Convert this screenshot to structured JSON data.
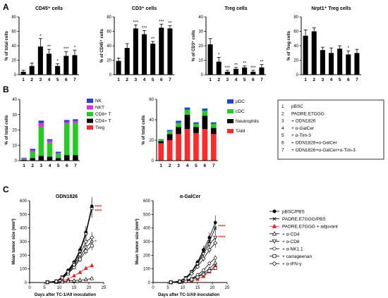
{
  "panels": [
    {
      "letter": "A"
    },
    {
      "letter": "B"
    },
    {
      "letter": "C"
    }
  ],
  "chart_data": [
    {
      "type": "bar",
      "panel": "A",
      "title": "CD45⁺ cells",
      "categories": [
        "1",
        "2",
        "3",
        "4",
        "5",
        "6",
        "7"
      ],
      "values": [
        4,
        12,
        39,
        29,
        12,
        26,
        27
      ],
      "errors": [
        2,
        4,
        11,
        6,
        3,
        6,
        7
      ],
      "ylabel": "% of total cells",
      "ylim": [
        0,
        80
      ],
      "yticks": [
        0,
        20,
        40,
        60,
        80
      ],
      "significance": [
        "",
        "",
        "*",
        "**",
        "*",
        "***",
        "*"
      ]
    },
    {
      "type": "bar",
      "panel": "A",
      "title": "CD3⁺ cells",
      "categories": [
        "1",
        "2",
        "3",
        "4",
        "5",
        "6",
        "7"
      ],
      "values": [
        19,
        37,
        64,
        56,
        43,
        65,
        64
      ],
      "errors": [
        4,
        6,
        5,
        5,
        3,
        5,
        4
      ],
      "ylabel": "% of CD45⁺ cells",
      "ylim": [
        0,
        80
      ],
      "yticks": [
        0,
        20,
        40,
        60,
        80
      ],
      "significance": [
        "",
        "",
        "***",
        "***",
        "**",
        "***",
        "**"
      ]
    },
    {
      "type": "bar",
      "panel": "A",
      "title": "Treg cells",
      "categories": [
        "1",
        "2",
        "3",
        "4",
        "5",
        "6",
        "7"
      ],
      "values": [
        21,
        9,
        2,
        4,
        5,
        2,
        5
      ],
      "errors": [
        4,
        3,
        1,
        1,
        1,
        1,
        2
      ],
      "ylabel": "% of CD3⁺ cells",
      "ylim": [
        0,
        40
      ],
      "yticks": [
        0,
        10,
        20,
        30,
        40
      ],
      "significance": [
        "",
        "*",
        "***",
        "**",
        "**",
        "***",
        "**"
      ]
    },
    {
      "type": "bar",
      "panel": "A",
      "title": "Nrpt1⁺ Treg cells",
      "categories": [
        "1",
        "2",
        "3",
        "4",
        "5",
        "6",
        "7"
      ],
      "values": [
        54,
        60,
        34,
        30,
        36,
        28,
        30
      ],
      "errors": [
        8,
        5,
        4,
        7,
        4,
        5,
        5
      ],
      "ylabel": "% of Treg cells",
      "ylim": [
        0,
        80
      ],
      "yticks": [
        0,
        20,
        40,
        60,
        80
      ],
      "significance": [
        "",
        "",
        "",
        "",
        "",
        "*",
        ""
      ]
    },
    {
      "type": "bar",
      "stacked": true,
      "panel": "B",
      "categories": [
        "1",
        "2",
        "3",
        "4",
        "5",
        "6",
        "7"
      ],
      "ylabel": "% of total cells",
      "ylim": [
        0,
        40
      ],
      "yticks": [
        0,
        10,
        20,
        30,
        40
      ],
      "series": [
        {
          "name": "Treg",
          "color": "#ff2a2a",
          "values": [
            0.1,
            0.2,
            0.1,
            0.1,
            0.1,
            0.1,
            0.1
          ]
        },
        {
          "name": "CD4+ T",
          "color": "#000000",
          "values": [
            0.5,
            1.5,
            3,
            2.5,
            1.5,
            3.5,
            3.5
          ]
        },
        {
          "name": "CD8+ T",
          "color": "#22cc22",
          "values": [
            0.7,
            3.8,
            19,
            9,
            2.7,
            20.5,
            21
          ]
        },
        {
          "name": "NKT",
          "color": "#dd33dd",
          "values": [
            0.3,
            1.2,
            2.5,
            1.4,
            0.7,
            1.2,
            1.4
          ]
        },
        {
          "name": "NK",
          "color": "#1f3fe0",
          "values": [
            0.3,
            1,
            1.5,
            1,
            0.8,
            1.2,
            1
          ]
        }
      ],
      "legend_order": [
        "NK",
        "NKT",
        "CD8+ T",
        "CD4+ T",
        "Treg"
      ]
    },
    {
      "type": "bar",
      "stacked": true,
      "panel": "B",
      "categories": [
        "1",
        "2",
        "3",
        "4",
        "5",
        "6",
        "7"
      ],
      "ylabel": "% of total cells",
      "ylim": [
        0,
        60
      ],
      "yticks": [
        0,
        20,
        40,
        60
      ],
      "series": [
        {
          "name": "TAM",
          "color": "#ff2a2a",
          "values": [
            17,
            20,
            26,
            31,
            27,
            31,
            26
          ]
        },
        {
          "name": "Neutrophils",
          "color": "#000000",
          "values": [
            2,
            6,
            7,
            14,
            6,
            13,
            6
          ]
        },
        {
          "name": "cDC",
          "color": "#22cc22",
          "values": [
            1.5,
            3,
            4,
            5,
            3,
            5,
            4
          ]
        },
        {
          "name": "pDC",
          "color": "#1f3fe0",
          "values": [
            0.5,
            1,
            2,
            2,
            1.5,
            2,
            1.5
          ]
        }
      ],
      "legend_order": [
        "pDC",
        "cDC",
        "Neutrophils",
        "TAM"
      ]
    },
    {
      "type": "line",
      "panel": "C",
      "title": "ODN1826",
      "xlabel": "Days after TC-1/A9 inoculation",
      "ylabel": "Mean tumor size (mm³)",
      "xlim": [
        0,
        25
      ],
      "ylim": [
        0,
        600
      ],
      "xticks": [
        0,
        5,
        10,
        15,
        20,
        25
      ],
      "yticks": [
        0,
        100,
        200,
        300,
        400,
        500,
        600
      ],
      "x": [
        6,
        9,
        11,
        13,
        15,
        17,
        19,
        21
      ],
      "series": [
        {
          "name": "pBSC/PBS",
          "marker": "circle-filled",
          "color": "#000000",
          "values": [
            2,
            10,
            40,
            90,
            150,
            240,
            370,
            560
          ]
        },
        {
          "name": "PADRE.E7GGG/PBS",
          "marker": "x",
          "color": "#000000",
          "values": [
            2,
            10,
            38,
            85,
            145,
            230,
            360,
            545
          ]
        },
        {
          "name": "PADRE.E7GGG + adjuvant",
          "marker": "triangle-filled",
          "color": "#e02020",
          "values": [
            1,
            4,
            10,
            25,
            50,
            75,
            105,
            125
          ]
        },
        {
          "name": "+ α-CD4",
          "marker": "triangle-open",
          "color": "#000000",
          "values": [
            1,
            3,
            6,
            10,
            14,
            18,
            22,
            30
          ]
        },
        {
          "name": "+ α-CD8",
          "marker": "triangle-down-open",
          "color": "#000000",
          "values": [
            2,
            9,
            38,
            82,
            140,
            225,
            355,
            540
          ]
        },
        {
          "name": "+ α-NK1.1",
          "marker": "circle-open",
          "color": "#000000",
          "values": [
            2,
            8,
            30,
            70,
            120,
            185,
            260,
            300
          ]
        },
        {
          "name": "+ carrageenan",
          "marker": "square-open",
          "color": "#000000",
          "values": [
            2,
            8,
            28,
            65,
            110,
            170,
            230,
            270
          ]
        },
        {
          "name": "+ α-IFN-γ",
          "marker": "diamond-open",
          "color": "#000000",
          "values": [
            2,
            9,
            35,
            78,
            130,
            205,
            300,
            330
          ]
        }
      ],
      "significance_labels": [
        {
          "text": "****",
          "color": "#e02020",
          "y": 555
        },
        {
          "text": "****",
          "color": "#e02020",
          "y": 525
        },
        {
          "text": "*",
          "color": "#e02020",
          "y": 300
        }
      ]
    },
    {
      "type": "line",
      "panel": "C",
      "title": "α-GalCer",
      "xlabel": "Days after TC-1/A9 inoculation",
      "ylabel": "Mean tumor size (mm³)",
      "xlim": [
        0,
        25
      ],
      "ylim": [
        0,
        600
      ],
      "xticks": [
        0,
        5,
        10,
        15,
        20,
        25
      ],
      "yticks": [
        0,
        100,
        200,
        300,
        400,
        500,
        600
      ],
      "x": [
        6,
        9,
        11,
        13,
        15,
        17,
        19,
        21
      ],
      "series": [
        {
          "name": "pBSC/PBS",
          "marker": "circle-filled",
          "color": "#000000",
          "values": [
            2,
            10,
            35,
            80,
            150,
            240,
            330,
            440
          ]
        },
        {
          "name": "PADRE.E7GGG/PBS",
          "marker": "x",
          "color": "#000000",
          "values": [
            2,
            9,
            33,
            75,
            140,
            225,
            300,
            400
          ]
        },
        {
          "name": "PADRE.E7GGG + adjuvant",
          "marker": "triangle-filled",
          "color": "#e02020",
          "values": [
            1,
            3,
            8,
            15,
            25,
            45,
            80,
            125
          ]
        },
        {
          "name": "+ α-CD4",
          "marker": "triangle-open",
          "color": "#000000",
          "values": [
            1,
            4,
            12,
            25,
            45,
            70,
            100,
            145
          ]
        },
        {
          "name": "+ α-CD8",
          "marker": "triangle-down-open",
          "color": "#000000",
          "values": [
            2,
            9,
            33,
            75,
            135,
            210,
            280,
            330
          ]
        },
        {
          "name": "+ α-NK1.1",
          "marker": "circle-open",
          "color": "#000000",
          "values": [
            1,
            5,
            15,
            30,
            55,
            90,
            140,
            180
          ]
        },
        {
          "name": "+ carrageenan",
          "marker": "square-open",
          "color": "#000000",
          "values": [
            1,
            4,
            10,
            22,
            40,
            60,
            85,
            105
          ]
        },
        {
          "name": "+ α-IFN-γ",
          "marker": "diamond-open",
          "color": "#000000",
          "values": [
            2,
            8,
            28,
            65,
            115,
            175,
            240,
            290
          ]
        }
      ],
      "significance_labels": [
        {
          "text": "****",
          "color": "#e02020",
          "y": 410
        },
        {
          "text": "****",
          "color": "#e02020",
          "y": 330
        }
      ]
    }
  ],
  "group_legend": [
    {
      "num": "1",
      "label": "pBSC"
    },
    {
      "num": "2",
      "label": "PADRE.E7GGG"
    },
    {
      "num": "3",
      "label": "+ ODN1826"
    },
    {
      "num": "4",
      "label": "+ α-GalCer"
    },
    {
      "num": "5",
      "label": "+ α-Tim-3"
    },
    {
      "num": "6",
      "label": "+ ODN1826+α-GalCer"
    },
    {
      "num": "7",
      "label": "+ ODN1826+α-GalCer+α-Tim-3"
    }
  ],
  "treatment_legend": [
    {
      "marker": "circle-filled",
      "color": "#000000",
      "label": "pBSC/PBS"
    },
    {
      "marker": "x",
      "color": "#000000",
      "label": "PADRE.E7GGG/PBS"
    },
    {
      "marker": "triangle-filled",
      "color": "#e02020",
      "label": "PADRE.E7GGG + adjuvant"
    },
    {
      "marker": "triangle-open",
      "color": "#000000",
      "label": "+ α-CD4"
    },
    {
      "marker": "triangle-down-open",
      "color": "#000000",
      "label": "+ α-CD8"
    },
    {
      "marker": "circle-open",
      "color": "#000000",
      "label": "+ α-NK1.1"
    },
    {
      "marker": "square-open",
      "color": "#000000",
      "label": "+ carrageenan"
    },
    {
      "marker": "diamond-open",
      "color": "#000000",
      "label": "+ α-IFN-γ"
    }
  ]
}
